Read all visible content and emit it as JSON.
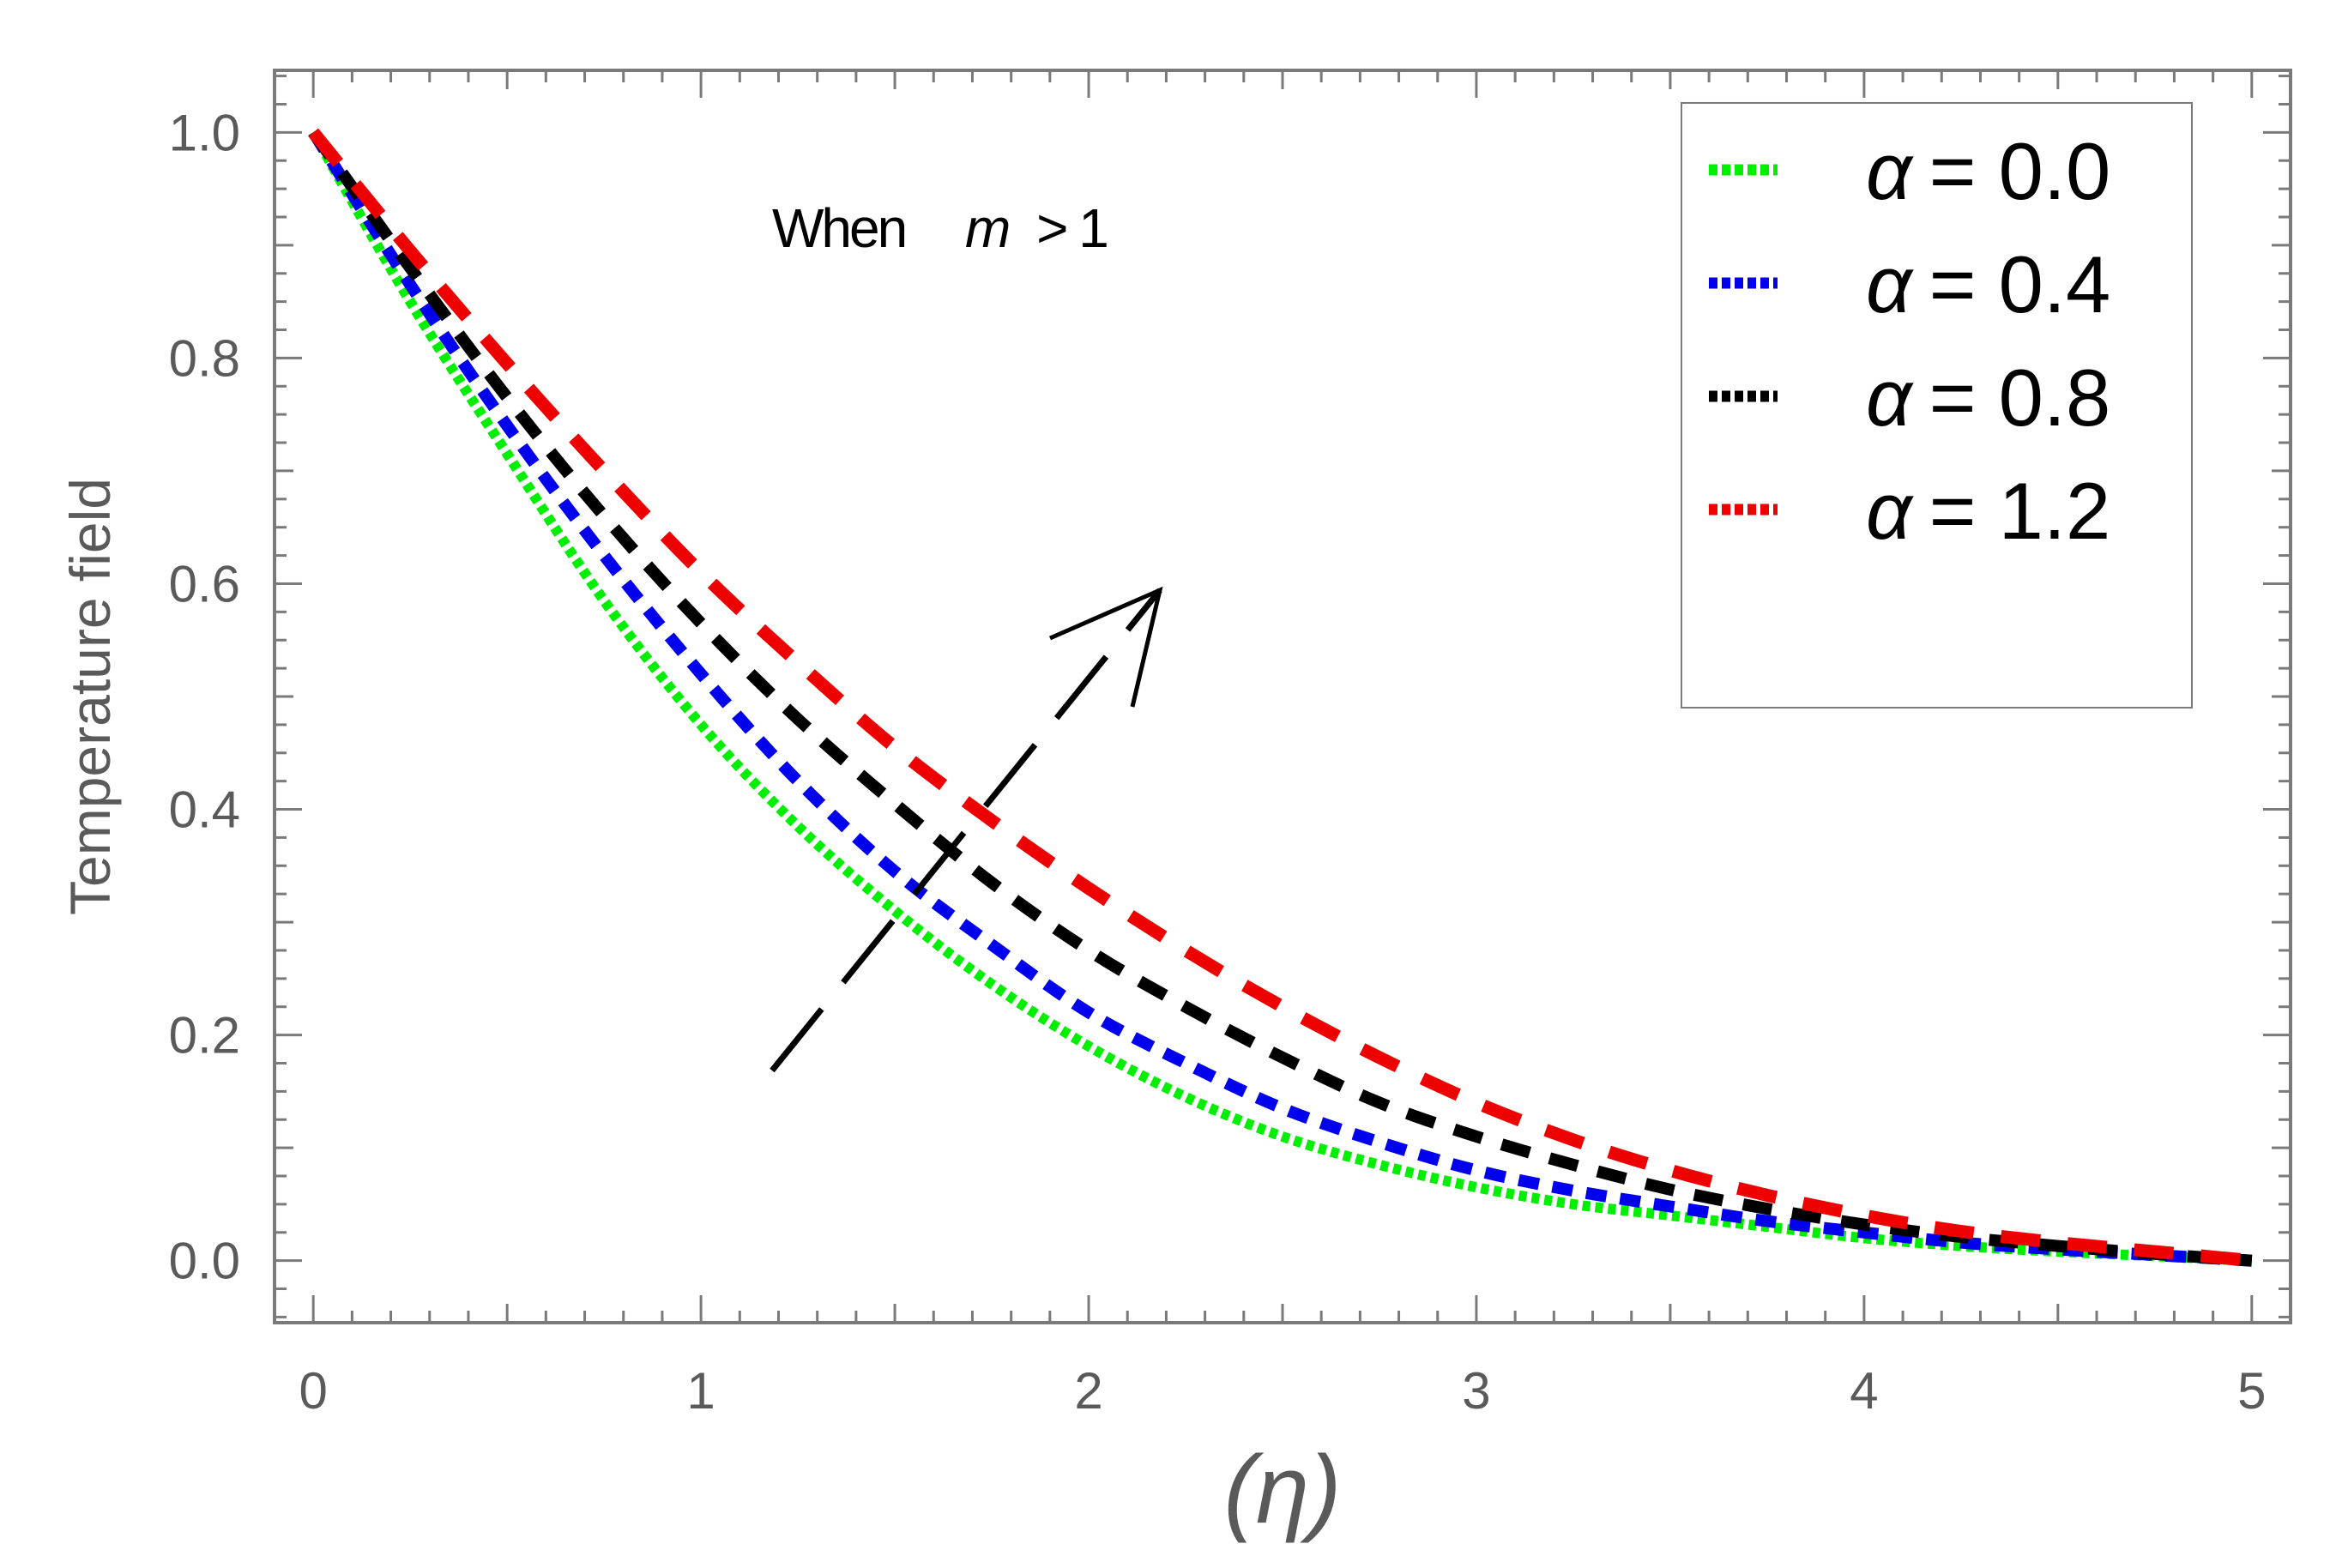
{
  "chart_data": {
    "type": "line",
    "title": "",
    "xlabel": "(η)",
    "ylabel": "Temperature field",
    "xlim": [
      -0.1,
      5.1
    ],
    "ylim": [
      -0.055,
      1.055
    ],
    "xticks": [
      0,
      1,
      2,
      3,
      4,
      5
    ],
    "xtick_labels": [
      "0",
      "1",
      "2",
      "3",
      "4",
      "5"
    ],
    "yticks": [
      0.0,
      0.2,
      0.4,
      0.6,
      0.8,
      1.0
    ],
    "ytick_labels": [
      "0.0",
      "0.2",
      "0.4",
      "0.6",
      "0.8",
      "1.0"
    ],
    "grid": false,
    "legend_position": "top-right",
    "annotation": {
      "text_prefix": "When",
      "variable": "m",
      "text_suffix": "> 1",
      "arrow_direction": "increasing α"
    },
    "x": [
      0,
      0.25,
      0.5,
      0.75,
      1.0,
      1.25,
      1.5,
      1.75,
      2.0,
      2.25,
      2.5,
      2.75,
      3.0,
      3.25,
      3.5,
      3.75,
      4.0,
      4.25,
      4.5,
      4.75,
      5.0
    ],
    "series": [
      {
        "name": "α = 0.0",
        "symbol": "α",
        "label_value": "= 0.0",
        "color": "#00ee00",
        "dash": "dotted",
        "values": [
          1.0,
          0.85,
          0.715,
          0.585,
          0.475,
          0.385,
          0.31,
          0.245,
          0.19,
          0.145,
          0.11,
          0.085,
          0.065,
          0.05,
          0.04,
          0.03,
          0.02,
          0.013,
          0.008,
          0.004,
          0.0
        ]
      },
      {
        "name": "α = 0.4",
        "symbol": "α",
        "label_value": "= 0.4",
        "color": "#0000ee",
        "dash": "short-dash",
        "values": [
          1.0,
          0.865,
          0.74,
          0.625,
          0.52,
          0.425,
          0.345,
          0.28,
          0.22,
          0.175,
          0.135,
          0.105,
          0.08,
          0.062,
          0.048,
          0.035,
          0.025,
          0.016,
          0.01,
          0.005,
          0.0
        ]
      },
      {
        "name": "α = 0.8",
        "symbol": "α",
        "label_value": "= 0.8",
        "color": "#000000",
        "dash": "medium-dash",
        "values": [
          1.0,
          0.88,
          0.765,
          0.66,
          0.565,
          0.48,
          0.405,
          0.335,
          0.275,
          0.225,
          0.18,
          0.14,
          0.11,
          0.085,
          0.063,
          0.046,
          0.032,
          0.021,
          0.013,
          0.006,
          0.0
        ]
      },
      {
        "name": "α = 1.2",
        "symbol": "α",
        "label_value": "= 1.2",
        "color": "#ee0000",
        "dash": "long-dash",
        "values": [
          1.0,
          0.895,
          0.795,
          0.7,
          0.61,
          0.53,
          0.455,
          0.39,
          0.33,
          0.275,
          0.225,
          0.18,
          0.14,
          0.107,
          0.08,
          0.058,
          0.04,
          0.026,
          0.016,
          0.008,
          0.0
        ]
      }
    ]
  }
}
